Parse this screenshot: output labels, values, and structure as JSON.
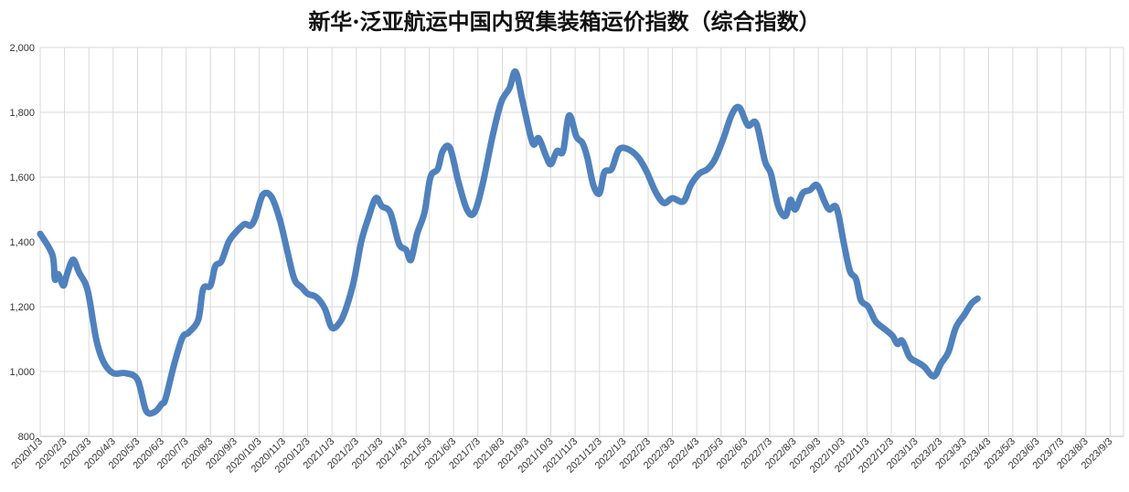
{
  "chart_data": {
    "type": "line",
    "title": "新华·泛亚航运中国内贸集装箱运价指数（综合指数）",
    "xlabel": "",
    "ylabel": "",
    "ylim": [
      800,
      2000
    ],
    "yticks": [
      "800",
      "1,000",
      "1,200",
      "1,400",
      "1,600",
      "1,800",
      "2,000"
    ],
    "categories": [
      "2020/1/3",
      "2020/2/3",
      "2020/3/3",
      "2020/4/3",
      "2020/5/3",
      "2020/6/3",
      "2020/7/3",
      "2020/8/3",
      "2020/9/3",
      "2020/10/3",
      "2020/11/3",
      "2020/12/3",
      "2021/1/3",
      "2021/2/3",
      "2021/3/3",
      "2021/4/3",
      "2021/5/3",
      "2021/6/3",
      "2021/7/3",
      "2021/8/3",
      "2021/9/3",
      "2021/10/3",
      "2021/11/3",
      "2021/12/3",
      "2022/1/3",
      "2022/2/3",
      "2022/3/3",
      "2022/4/3",
      "2022/5/3",
      "2022/6/3",
      "2022/7/3",
      "2022/8/3",
      "2022/9/3",
      "2022/10/3",
      "2022/11/3",
      "2022/12/3",
      "2023/1/3",
      "2023/2/3",
      "2023/3/3",
      "2023/4/3",
      "2023/5/3",
      "2023/6/3",
      "2023/7/3",
      "2023/8/3",
      "2023/9/3"
    ],
    "grid": true,
    "legend": "none",
    "line_color": "#4f81bd",
    "series": [
      {
        "values": [
          [
            0.0,
            1425
          ],
          [
            0.5,
            1360
          ],
          [
            0.6,
            1285
          ],
          [
            0.75,
            1300
          ],
          [
            0.95,
            1265
          ],
          [
            1.1,
            1300
          ],
          [
            1.35,
            1345
          ],
          [
            1.6,
            1305
          ],
          [
            1.95,
            1250
          ],
          [
            2.3,
            1100
          ],
          [
            2.6,
            1030
          ],
          [
            3.0,
            995
          ],
          [
            3.5,
            995
          ],
          [
            4.0,
            975
          ],
          [
            4.35,
            880
          ],
          [
            4.7,
            875
          ],
          [
            5.0,
            900
          ],
          [
            5.15,
            915
          ],
          [
            5.5,
            1020
          ],
          [
            5.85,
            1105
          ],
          [
            6.1,
            1120
          ],
          [
            6.5,
            1160
          ],
          [
            6.7,
            1255
          ],
          [
            7.0,
            1265
          ],
          [
            7.2,
            1325
          ],
          [
            7.45,
            1340
          ],
          [
            7.75,
            1400
          ],
          [
            8.05,
            1430
          ],
          [
            8.4,
            1455
          ],
          [
            8.65,
            1450
          ],
          [
            8.85,
            1475
          ],
          [
            9.15,
            1545
          ],
          [
            9.5,
            1540
          ],
          [
            9.85,
            1470
          ],
          [
            10.15,
            1375
          ],
          [
            10.45,
            1285
          ],
          [
            10.75,
            1260
          ],
          [
            11.0,
            1240
          ],
          [
            11.35,
            1230
          ],
          [
            11.7,
            1195
          ],
          [
            12.0,
            1135
          ],
          [
            12.35,
            1155
          ],
          [
            12.6,
            1200
          ],
          [
            12.9,
            1280
          ],
          [
            13.2,
            1400
          ],
          [
            13.5,
            1475
          ],
          [
            13.8,
            1535
          ],
          [
            14.05,
            1510
          ],
          [
            14.4,
            1490
          ],
          [
            14.75,
            1395
          ],
          [
            15.05,
            1375
          ],
          [
            15.25,
            1345
          ],
          [
            15.5,
            1425
          ],
          [
            15.8,
            1490
          ],
          [
            16.05,
            1600
          ],
          [
            16.35,
            1625
          ],
          [
            16.55,
            1680
          ],
          [
            16.85,
            1690
          ],
          [
            17.2,
            1585
          ],
          [
            17.55,
            1500
          ],
          [
            17.85,
            1490
          ],
          [
            18.2,
            1580
          ],
          [
            18.6,
            1725
          ],
          [
            18.95,
            1830
          ],
          [
            19.3,
            1875
          ],
          [
            19.55,
            1925
          ],
          [
            19.85,
            1830
          ],
          [
            20.25,
            1705
          ],
          [
            20.5,
            1720
          ],
          [
            20.8,
            1665
          ],
          [
            21.0,
            1640
          ],
          [
            21.25,
            1680
          ],
          [
            21.5,
            1680
          ],
          [
            21.75,
            1790
          ],
          [
            22.05,
            1725
          ],
          [
            22.3,
            1705
          ],
          [
            22.5,
            1660
          ],
          [
            22.75,
            1575
          ],
          [
            23.0,
            1550
          ],
          [
            23.2,
            1615
          ],
          [
            23.5,
            1625
          ],
          [
            23.8,
            1685
          ],
          [
            24.2,
            1685
          ],
          [
            24.6,
            1660
          ],
          [
            24.95,
            1615
          ],
          [
            25.3,
            1555
          ],
          [
            25.65,
            1520
          ],
          [
            26.0,
            1535
          ],
          [
            26.45,
            1525
          ],
          [
            26.75,
            1575
          ],
          [
            27.1,
            1610
          ],
          [
            27.45,
            1625
          ],
          [
            27.75,
            1655
          ],
          [
            28.1,
            1720
          ],
          [
            28.45,
            1795
          ],
          [
            28.75,
            1815
          ],
          [
            29.1,
            1760
          ],
          [
            29.45,
            1765
          ],
          [
            29.8,
            1650
          ],
          [
            30.05,
            1610
          ],
          [
            30.35,
            1510
          ],
          [
            30.65,
            1480
          ],
          [
            30.85,
            1530
          ],
          [
            31.05,
            1500
          ],
          [
            31.35,
            1550
          ],
          [
            31.65,
            1560
          ],
          [
            31.95,
            1575
          ],
          [
            32.25,
            1525
          ],
          [
            32.45,
            1500
          ],
          [
            32.75,
            1505
          ],
          [
            33.05,
            1395
          ],
          [
            33.3,
            1310
          ],
          [
            33.55,
            1285
          ],
          [
            33.75,
            1220
          ],
          [
            34.05,
            1200
          ],
          [
            34.35,
            1155
          ],
          [
            34.75,
            1130
          ],
          [
            35.05,
            1110
          ],
          [
            35.25,
            1085
          ],
          [
            35.45,
            1095
          ],
          [
            35.75,
            1045
          ],
          [
            36.05,
            1030
          ],
          [
            36.35,
            1015
          ],
          [
            36.75,
            985
          ],
          [
            37.05,
            1025
          ],
          [
            37.35,
            1060
          ],
          [
            37.65,
            1135
          ],
          [
            38.0,
            1175
          ],
          [
            38.3,
            1210
          ],
          [
            38.55,
            1225
          ]
        ]
      }
    ]
  }
}
